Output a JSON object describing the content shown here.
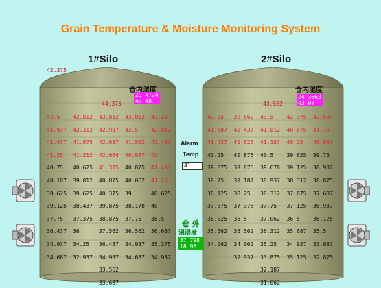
{
  "title": "Grain Temperature & Moisture Monitoring System",
  "silo1": {
    "name": "1#Silo",
    "outside_value": "42.375",
    "top_value": "44.375",
    "humidity_label": "仓内湿度",
    "humidity_line1": "29  4724",
    "humidity_line2": "43  48",
    "rows": [
      [
        "42.5",
        "42.812",
        "43.812",
        "43.062",
        "43.25"
      ],
      [
        "41.937",
        "42.312",
        "42.937",
        "42.5",
        "42.812"
      ],
      [
        "41.437",
        "41.875",
        "42.687",
        "41.562",
        "42.437"
      ],
      [
        "41.25",
        "41.312",
        "42.064",
        "40.937",
        "42"
      ],
      [
        "40.75",
        "40.625",
        "41.375",
        "40.875",
        "41.437"
      ],
      [
        "40.187",
        "39.812",
        "40.875",
        "40.062",
        "41.25"
      ],
      [
        "39.625",
        "39.625",
        "40.375",
        "39",
        "40.625"
      ],
      [
        "39.125",
        "38.437",
        "39.875",
        "38.178",
        "40"
      ],
      [
        "37.75",
        "37.375",
        "38.875",
        "37.75",
        "38.5"
      ],
      [
        "36.437",
        "36",
        "37.562",
        "36.562",
        "36.687"
      ],
      [
        "34.937",
        "34.25",
        "36.437",
        "34.937",
        "35.375"
      ],
      [
        "34.687",
        "32.937",
        "34.937",
        "34.687",
        "34.937"
      ],
      [
        "",
        "",
        "33.562",
        "",
        ""
      ],
      [
        "",
        "",
        "33.687",
        "",
        ""
      ]
    ],
    "red_rows": [
      0,
      1,
      2,
      3
    ],
    "red_cells": [
      [
        4,
        2
      ],
      [
        4,
        4
      ],
      [
        5,
        4
      ]
    ]
  },
  "silo2": {
    "name": "2#Silo",
    "top_value": "43.562",
    "humidity_label": "仓内湿度",
    "humidity_line1": "24  3663",
    "humidity_line2": "43  07",
    "rows": [
      [
        "42.25",
        "39.562",
        "43.5",
        "42.375",
        "42.687"
      ],
      [
        "41.687",
        "42.437",
        "41.812",
        "40.875",
        "41.75"
      ],
      [
        "41.437",
        "41.625",
        "41.187",
        "40.25",
        "40.937"
      ],
      [
        "40.25",
        "40.875",
        "40.5",
        "39.625",
        "39.75"
      ],
      [
        "39.375",
        "39.875",
        "39.678",
        "39.125",
        "38.937"
      ],
      [
        "39.75",
        "39.187",
        "38.937",
        "38.312",
        "38.875"
      ],
      [
        "38.125",
        "38.25",
        "38.312",
        "37.875",
        "37.687"
      ],
      [
        "37.375",
        "37.375",
        "37.75",
        "37.125",
        "36.937"
      ],
      [
        "36.625",
        "36.5",
        "37.062",
        "36.5",
        "36.125"
      ],
      [
        "35.562",
        "35.562",
        "36.312",
        "35.687",
        "35.5"
      ],
      [
        "34.062",
        "34.062",
        "35.25",
        "34.937",
        "33.937"
      ],
      [
        "",
        "32.937",
        "33.875",
        "35.125",
        "32.875"
      ],
      [
        "",
        "",
        "32.187",
        "",
        ""
      ],
      [
        "",
        "",
        "31.062",
        "",
        ""
      ]
    ],
    "red_rows": [
      0,
      1,
      2
    ],
    "red_cells": []
  },
  "alarm": {
    "label_line1": "Alarm",
    "label_line2": "Temp",
    "value": "41"
  },
  "outside": {
    "label_line1": "仓 外",
    "label_line2": "温湿度",
    "value_line1": "37 798",
    "value_line2": "18 96"
  },
  "colors": {
    "background": "#bff4f0",
    "title": "#ff7a00",
    "silo_body": "#a9ab84",
    "alarm_red": "#e8202a",
    "humidity_box": "#ff22ff",
    "outside_box": "#13b513"
  },
  "icons": [
    "fan-icon"
  ]
}
